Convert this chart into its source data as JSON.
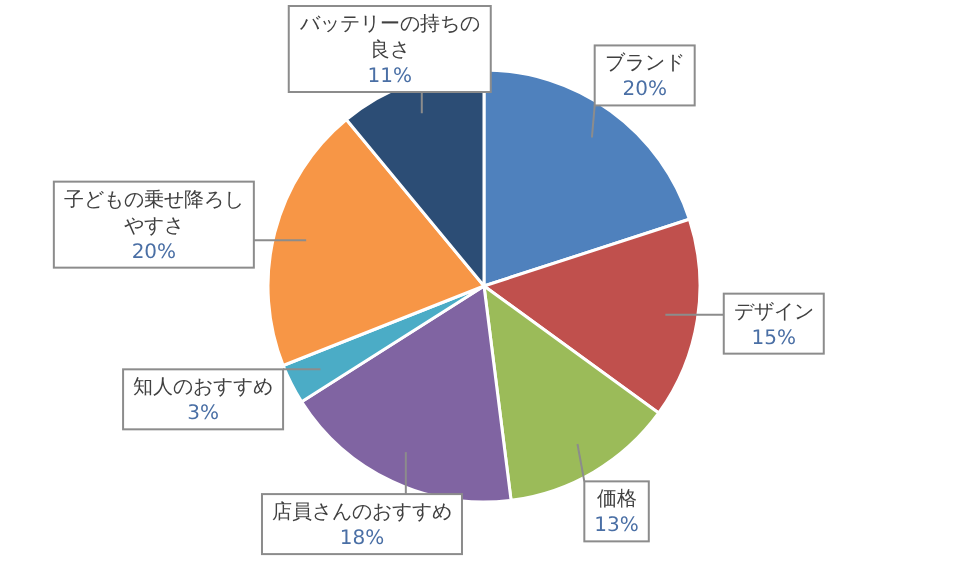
{
  "chart_data": {
    "type": "pie",
    "categories": [
      "ブランド",
      "デザイン",
      "価格",
      "店員さんのおすすめ",
      "知人のおすすめ",
      "子どもの乗せ降ろしやすさ",
      "バッテリーの持ちの良さ"
    ],
    "values": [
      20,
      15,
      13,
      18,
      3,
      20,
      11
    ],
    "value_labels": [
      "20%",
      "15%",
      "13%",
      "18%",
      "3%",
      "20%",
      "11%"
    ],
    "colors": [
      "#4f81bd",
      "#c0504d",
      "#9bbb59",
      "#8064a2",
      "#4bacc6",
      "#f79646",
      "#2c4d75"
    ]
  }
}
